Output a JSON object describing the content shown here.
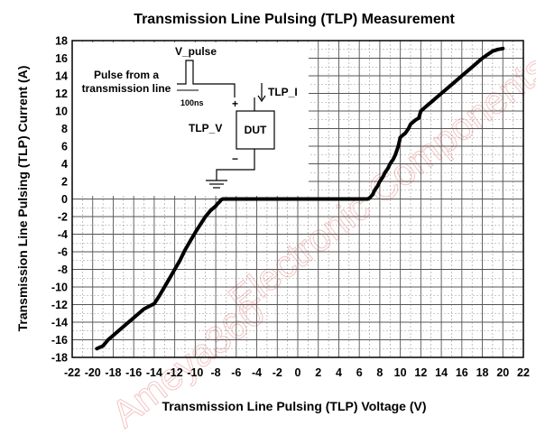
{
  "chart_data": {
    "type": "line",
    "title": "Transmission Line Pulsing (TLP) Measurement",
    "xlabel": "Transmission Line Pulsing (TLP) Voltage (V)",
    "ylabel": "Transmission Line Pulsing (TLP) Current (A)",
    "xlim": [
      -22,
      22
    ],
    "ylim": [
      -18,
      18
    ],
    "x_ticks": [
      "-22",
      "-20",
      "-18",
      "-16",
      "-14",
      "-12",
      "-10",
      "-8",
      "-6",
      "-4",
      "-2",
      "0",
      "2",
      "4",
      "6",
      "8",
      "10",
      "12",
      "14",
      "16",
      "18",
      "20",
      "22"
    ],
    "y_ticks": [
      "18",
      "16",
      "14",
      "12",
      "10",
      "8",
      "6",
      "4",
      "2",
      "0",
      "-2",
      "-4",
      "-6",
      "-8",
      "-10",
      "-12",
      "-14",
      "-16",
      "-18"
    ],
    "grid": true,
    "series": [
      {
        "color": "#000000",
        "x": [
          -19.6,
          -19.0,
          -18.5,
          -18.0,
          -17.0,
          -16.0,
          -15.0,
          -14.0,
          -13.5,
          -13.0,
          -12.5,
          -12.0,
          -11.5,
          -11.0,
          -10.5,
          -10.0,
          -9.5,
          -9.0,
          -8.5,
          -8.0,
          -7.8,
          -7.6,
          -7.5,
          -7.3,
          -7.0,
          0.0,
          6.8,
          7.0,
          7.3,
          7.5,
          7.8,
          8.0,
          8.3,
          8.5,
          8.8,
          9.0,
          9.3,
          9.5,
          9.8,
          10.0,
          10.3,
          10.5,
          10.8,
          11.0,
          11.3,
          11.5,
          11.8,
          12.0,
          12.5,
          13.0,
          13.5,
          14.0,
          15.0,
          16.0,
          17.0,
          18.0,
          19.0,
          19.5,
          20.0
        ],
        "y": [
          -17.0,
          -16.7,
          -16.0,
          -15.5,
          -14.5,
          -13.5,
          -12.5,
          -11.9,
          -11.0,
          -10.0,
          -9.0,
          -8.0,
          -7.0,
          -5.8,
          -4.8,
          -3.8,
          -2.9,
          -2.0,
          -1.3,
          -0.8,
          -0.5,
          -0.3,
          -0.1,
          0.0,
          0.0,
          0.0,
          0.0,
          0.1,
          0.5,
          1.0,
          1.5,
          2.0,
          2.5,
          3.0,
          3.5,
          4.0,
          4.5,
          5.0,
          6.0,
          7.0,
          7.3,
          7.5,
          8.0,
          8.5,
          8.8,
          9.0,
          9.2,
          10.0,
          10.5,
          11.0,
          11.5,
          12.0,
          13.0,
          14.0,
          15.0,
          16.0,
          16.8,
          17.0,
          17.1
        ]
      }
    ]
  },
  "inset": {
    "v_pulse_label": "V_pulse",
    "source_label_line1": "Pulse from a",
    "source_label_line2": "transmission line",
    "duration_label": "100ns",
    "current_label": "TLP_I",
    "voltage_label": "TLP_V",
    "device_label": "DUT",
    "plus_sign": "+",
    "minus_sign": "−"
  },
  "watermark": {
    "line1": "Ameya360",
    "line2": "Electronic Components"
  }
}
